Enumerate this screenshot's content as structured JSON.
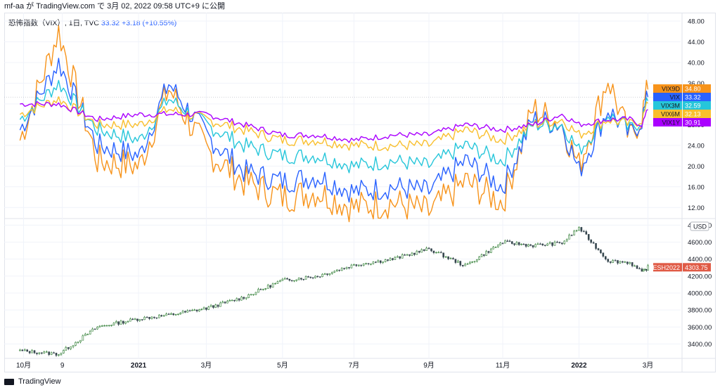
{
  "header": {
    "user": "mf-aa",
    "text": "mf-aa が TradingView.com で 3月 02, 2022 09:58 UTC+9 に公開"
  },
  "legend": {
    "title": "恐怖指数（VIX）, 1日, TVC",
    "value": "33.32",
    "change": "+3.18 (+10.55%)"
  },
  "footer": {
    "brand": "TradingView"
  },
  "colors": {
    "VIX9D": "#f7931a",
    "VIX": "#2962ff",
    "VIX3M": "#26c6da",
    "VIX6M": "#f9bf2d",
    "VIX1Y": "#aa00ff",
    "ES": "#e05a45",
    "candle_up": "#2e7d32",
    "candle_down": "#37474f",
    "grid": "#f0f3fa"
  },
  "chart_data": [
    {
      "type": "line",
      "title": "恐怖指数（VIX）, 1日, TVC",
      "ylim": [
        10,
        48
      ],
      "yticks": [
        "48.00",
        "44.00",
        "40.00",
        "36.00",
        "32.00",
        "28.00",
        "24.00",
        "20.00",
        "16.00",
        "12.00"
      ],
      "x_labels": [
        "10月",
        "9",
        "2021",
        "3月",
        "5月",
        "7月",
        "9月",
        "11月",
        "2022",
        "3月"
      ],
      "x": [
        "2020-09-28",
        "2020-10-30",
        "2020-12-01",
        "2021-01-05",
        "2021-01-29",
        "2021-03-01",
        "2021-04-01",
        "2021-05-03",
        "2021-06-01",
        "2021-07-01",
        "2021-08-02",
        "2021-09-01",
        "2021-10-01",
        "2021-11-01",
        "2021-11-26",
        "2021-12-20",
        "2022-01-03",
        "2022-01-27",
        "2022-02-14",
        "2022-02-24",
        "2022-03-01"
      ],
      "series": [
        {
          "name": "VIX9D",
          "values": [
            25,
            46,
            21,
            20,
            35,
            23,
            17,
            14,
            15,
            12,
            13,
            11,
            17,
            13,
            31,
            28,
            20,
            37,
            25,
            30,
            34.8
          ]
        },
        {
          "name": "VIX",
          "values": [
            27,
            40,
            24,
            22,
            36,
            26,
            19,
            17,
            18,
            15,
            16,
            15,
            21,
            16,
            29,
            28,
            19,
            31,
            26,
            29,
            33.32
          ]
        },
        {
          "name": "VIX3M",
          "values": [
            29,
            36,
            27,
            25,
            33,
            28,
            24,
            22,
            22,
            20,
            21,
            20,
            24,
            21,
            28,
            28,
            23,
            30,
            27,
            29,
            32.59
          ]
        },
        {
          "name": "VIX6M",
          "values": [
            30,
            33,
            28,
            28,
            31,
            29,
            27,
            25,
            25,
            24,
            24,
            24,
            27,
            25,
            28,
            29,
            26,
            29,
            28,
            29,
            32.13
          ]
        },
        {
          "name": "VIX1Y",
          "values": [
            32,
            32,
            29,
            30,
            30,
            30,
            28,
            26,
            26,
            25,
            26,
            26,
            28,
            27,
            28,
            30,
            28,
            29,
            29,
            28,
            30.91
          ]
        }
      ],
      "last_labels": [
        {
          "name": "VIX9D",
          "value": "34.80"
        },
        {
          "name": "VIX",
          "value": "33.32"
        },
        {
          "name": "VIX3M",
          "value": "32.59"
        },
        {
          "name": "VIX6M",
          "value": "32.13"
        },
        {
          "name": "VIX1Y",
          "value": "30.91"
        }
      ]
    },
    {
      "type": "candlestick",
      "series_name": "ESH2022",
      "unit": "USD",
      "last_value": "4303.75",
      "ylim": [
        3230,
        4820
      ],
      "yticks": [
        "4800.00",
        "4600.00",
        "4400.00",
        "4200.00",
        "4000.00",
        "3800.00",
        "3600.00",
        "3400.00"
      ],
      "x": [
        "2020-09-28",
        "2020-10-30",
        "2020-12-01",
        "2021-01-05",
        "2021-01-29",
        "2021-03-01",
        "2021-04-01",
        "2021-05-03",
        "2021-06-01",
        "2021-07-01",
        "2021-08-02",
        "2021-09-01",
        "2021-10-01",
        "2021-11-01",
        "2021-11-26",
        "2021-12-20",
        "2022-01-03",
        "2022-01-27",
        "2022-02-14",
        "2022-02-24",
        "2022-03-01"
      ],
      "close": [
        3320,
        3280,
        3600,
        3700,
        3740,
        3820,
        3950,
        4150,
        4200,
        4330,
        4400,
        4520,
        4320,
        4600,
        4560,
        4590,
        4770,
        4380,
        4360,
        4240,
        4303.75
      ]
    }
  ]
}
